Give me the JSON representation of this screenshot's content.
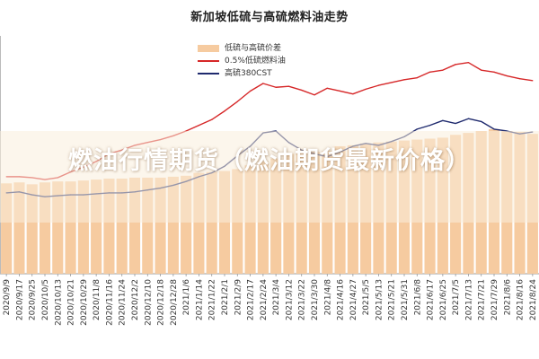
{
  "chart_data": {
    "type": "line",
    "title": "新加坡低硫与高硫燃料油走势",
    "xlabel": "",
    "ylabel": "",
    "legend_position": "top-center",
    "grid": false,
    "categories": [
      "2020/9/9",
      "2020/9/17",
      "2020/9/25",
      "2020/10/5",
      "2020/10/13",
      "2020/10/21",
      "2020/10/29",
      "2020/11/8",
      "2020/11/16",
      "2020/11/24",
      "2020/12/2",
      "2020/12/10",
      "2020/12/18",
      "2020/12/28",
      "2021/1/6",
      "2021/1/14",
      "2021/1/22",
      "2021/2/1",
      "2021/2/9",
      "2021/2/17",
      "2021/2/24",
      "2021/3/4",
      "2021/3/12",
      "2021/3/22",
      "2021/3/30",
      "2021/4/8",
      "2021/4/16",
      "2021/4/27",
      "2021/5/5",
      "2021/5/13",
      "2021/5/21",
      "2021/5/31",
      "2021/6/8",
      "2021/6/17",
      "2021/6/25",
      "2021/7/5",
      "2021/7/13",
      "2021/7/21",
      "2021/7/29",
      "2021/8/6",
      "2021/8/16",
      "2021/8/24"
    ],
    "series": [
      {
        "name": "低硫与高硫价差",
        "type": "bar",
        "color": "#f6cba0",
        "values": [
          95,
          96,
          94,
          96,
          97,
          97,
          98,
          99,
          100,
          100,
          101,
          101,
          101,
          102,
          103,
          106,
          107,
          108,
          110,
          114,
          118,
          121,
          126,
          127,
          128,
          129,
          134,
          135,
          137,
          138,
          139,
          140,
          141,
          142,
          143,
          146,
          148,
          150,
          152,
          150,
          149,
          147
        ]
      },
      {
        "name": "0.5%低硫燃料油",
        "type": "line",
        "color": "#d62728",
        "values": [
          102,
          102,
          101,
          99,
          101,
          107,
          112,
          118,
          126,
          130,
          135,
          138,
          141,
          145,
          150,
          156,
          162,
          171,
          181,
          192,
          200,
          196,
          197,
          193,
          188,
          195,
          192,
          189,
          194,
          198,
          201,
          204,
          206,
          212,
          214,
          220,
          222,
          214,
          212,
          208,
          205,
          203
        ]
      },
      {
        "name": "高硫380CST",
        "type": "line",
        "color": "#1f2a6e",
        "values": [
          85,
          86,
          83,
          81,
          82,
          83,
          83,
          84,
          85,
          85,
          86,
          88,
          90,
          93,
          97,
          102,
          106,
          113,
          124,
          134,
          148,
          150,
          138,
          130,
          126,
          123,
          128,
          134,
          137,
          135,
          139,
          144,
          152,
          156,
          161,
          158,
          163,
          160,
          152,
          150,
          147,
          149
        ]
      }
    ]
  },
  "overlay": {
    "text": "燃油行情期货（燃油期货最新价格）"
  }
}
